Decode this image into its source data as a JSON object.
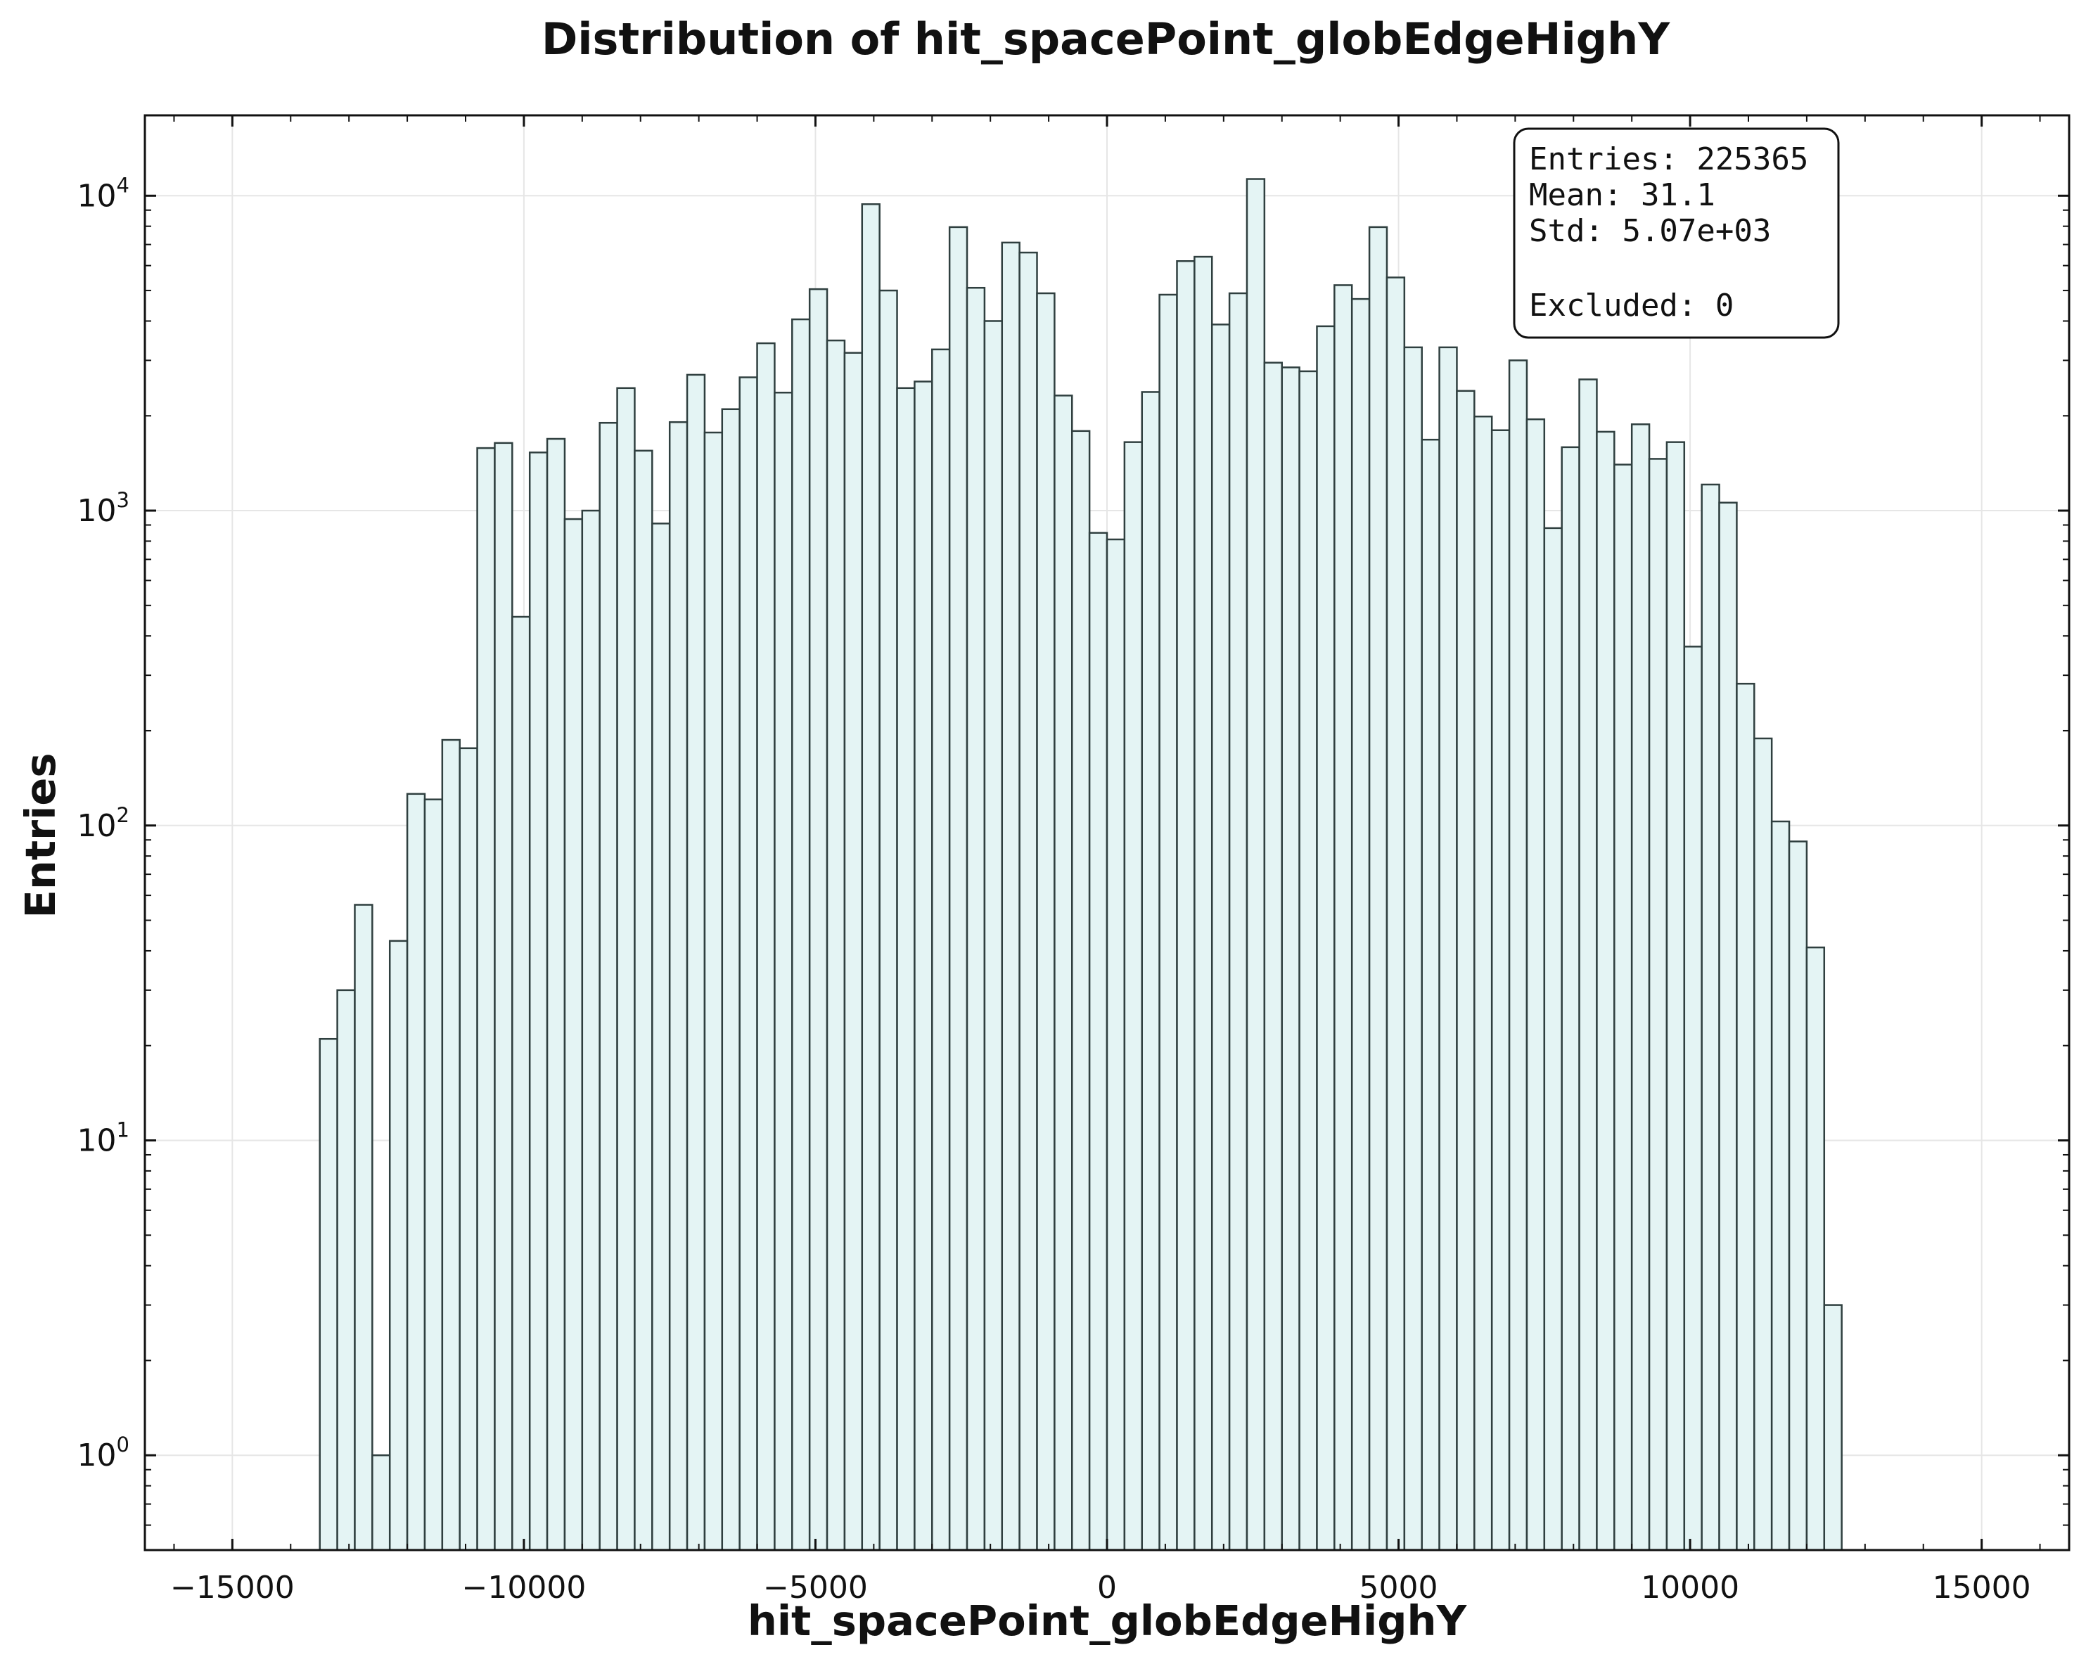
{
  "chart_data": {
    "type": "bar",
    "title": "Distribution of hit_spacePoint_globEdgeHighY",
    "xlabel": "hit_spacePoint_globEdgeHighY",
    "ylabel": "Entries",
    "xlim": [
      -16500,
      16500
    ],
    "ylim": [
      0.5,
      18000
    ],
    "yscale": "log",
    "grid": true,
    "bar_fill": "#e4f4f4",
    "bar_edge": "#2f3f3f",
    "x_ticks": [
      {
        "value": -15000,
        "label": "−15000"
      },
      {
        "value": -10000,
        "label": "−10000"
      },
      {
        "value": -5000,
        "label": "−5000"
      },
      {
        "value": 0,
        "label": "0"
      },
      {
        "value": 5000,
        "label": "5000"
      },
      {
        "value": 10000,
        "label": "10000"
      },
      {
        "value": 15000,
        "label": "15000"
      }
    ],
    "y_ticks": [
      {
        "value": 1,
        "base": "10",
        "exp": "0"
      },
      {
        "value": 10,
        "base": "10",
        "exp": "1"
      },
      {
        "value": 100,
        "base": "10",
        "exp": "2"
      },
      {
        "value": 1000,
        "base": "10",
        "exp": "3"
      },
      {
        "value": 10000,
        "base": "10",
        "exp": "4"
      }
    ],
    "bin_start": -13500,
    "bin_width": 300,
    "values": [
      21,
      30,
      56,
      1,
      43,
      126,
      121,
      187,
      176,
      1580,
      1640,
      460,
      1530,
      1690,
      940,
      1000,
      1900,
      2450,
      1550,
      910,
      1910,
      2700,
      1770,
      2100,
      2650,
      3400,
      2370,
      4050,
      5050,
      3470,
      3170,
      9400,
      5000,
      2450,
      2570,
      3250,
      7950,
      5100,
      4000,
      7100,
      6600,
      4900,
      2320,
      1790,
      850,
      810,
      1650,
      2380,
      4850,
      6200,
      6400,
      3900,
      4900,
      11300,
      2950,
      2850,
      2770,
      3850,
      5200,
      4700,
      7950,
      5500,
      3300,
      1680,
      3300,
      2400,
      1990,
      1800,
      3000,
      1950,
      880,
      1590,
      2610,
      1780,
      1400,
      1880,
      1460,
      1650,
      370,
      1210,
      1060,
      282,
      189,
      103,
      89,
      41,
      3
    ]
  },
  "stats_box": {
    "entries": "Entries: 225365",
    "mean": "Mean: 31.1",
    "std": "Std: 5.07e+03",
    "excluded": "Excluded: 0"
  }
}
